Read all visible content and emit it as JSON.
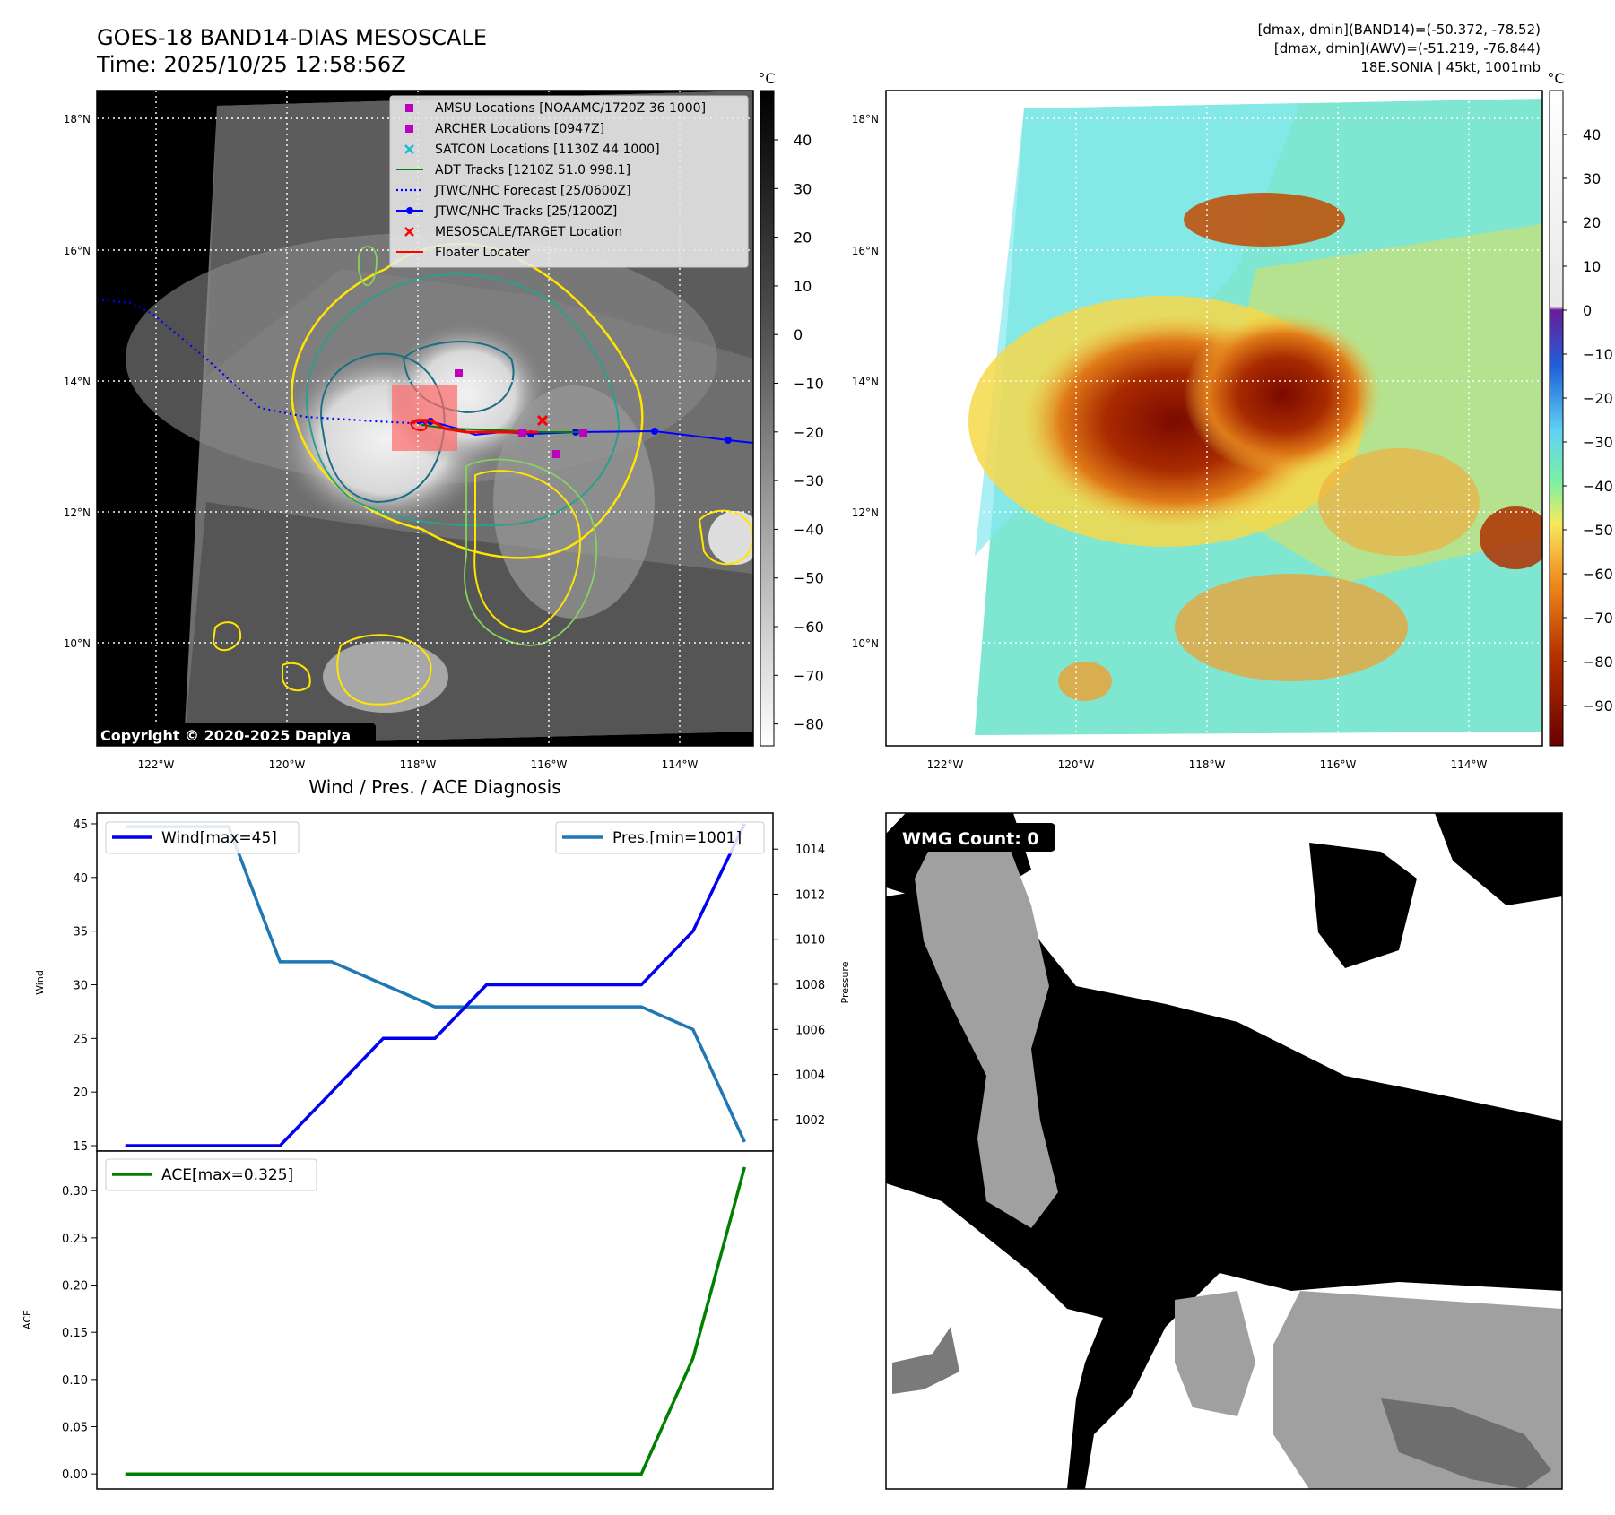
{
  "header": {
    "title_line1": "GOES-18 BAND14-DIAS MESOSCALE",
    "title_line2": "Time: 2025/10/25 12:58:56Z",
    "stats_line1": "[dmax, dmin](BAND14)=(-50.372, -78.52)",
    "stats_line2": "[dmax, dmin](AWV)=(-51.219, -76.844)",
    "stats_line3": "18E.SONIA | 45kt, 1001mb"
  },
  "map_axes": {
    "lon_labels": [
      "122°W",
      "120°W",
      "118°W",
      "116°W",
      "114°W"
    ],
    "lat_labels": [
      "18°N",
      "16°N",
      "14°N",
      "12°N",
      "10°N"
    ],
    "copyright": "Copyright © 2020-2025 Dapiya"
  },
  "ir_colorbar": {
    "unit": "°C",
    "ticks": [
      "40",
      "30",
      "20",
      "10",
      "0",
      "−10",
      "−20",
      "−30",
      "−40",
      "−50",
      "−60",
      "−70",
      "−80"
    ]
  },
  "wv_colorbar": {
    "unit": "°C",
    "ticks": [
      "40",
      "30",
      "20",
      "10",
      "0",
      "−10",
      "−20",
      "−30",
      "−40",
      "−50",
      "−60",
      "−70",
      "−80",
      "−90"
    ]
  },
  "map_legend": [
    {
      "label": "AMSU Locations [NOAAMC/1720Z 36 1000]",
      "color": "#c000c0",
      "marker": "square"
    },
    {
      "label": "ARCHER Locations [0947Z]",
      "color": "#c000c0",
      "marker": "square"
    },
    {
      "label": "SATCON Locations [1130Z 44 1000]",
      "color": "#17becf",
      "marker": "x"
    },
    {
      "label": "ADT Tracks [1210Z 51.0 998.1]",
      "color": "#008000",
      "marker": "line"
    },
    {
      "label": "JTWC/NHC Forecast [25/0600Z]",
      "color": "#0000ff",
      "marker": "dotted"
    },
    {
      "label": "JTWC/NHC Tracks [25/1200Z]",
      "color": "#0000ff",
      "marker": "line-dot"
    },
    {
      "label": "MESOSCALE/TARGET Location",
      "color": "#ff0000",
      "marker": "x"
    },
    {
      "label": "Floater Locater",
      "color": "#ff0000",
      "marker": "line"
    }
  ],
  "wmg": {
    "label": "WMG Count: 0"
  },
  "chart_data": [
    {
      "type": "line",
      "title": "Wind / Pres. / ACE Diagnosis",
      "x": [
        0,
        1,
        2,
        3,
        4,
        5,
        6,
        7,
        8,
        9,
        10,
        11,
        12
      ],
      "series": [
        {
          "name": "Wind[max=45]",
          "axis": "left",
          "color": "#0000ee",
          "values": [
            15,
            15,
            15,
            15,
            20,
            25,
            25,
            30,
            30,
            30,
            30,
            35,
            45
          ]
        },
        {
          "name": "Pres.[min=1001]",
          "axis": "right",
          "color": "#1f77b4",
          "values": [
            1015,
            1015,
            1015,
            1009,
            1009,
            1008,
            1007,
            1007,
            1007,
            1007,
            1007,
            1006,
            1001
          ]
        }
      ],
      "ylabel": "Wind",
      "ylabel_right": "Pres­sure",
      "yticks": [
        "15",
        "20",
        "25",
        "30",
        "35",
        "40",
        "45"
      ],
      "yticks_right": [
        "1002",
        "1004",
        "1006",
        "1008",
        "1010",
        "1012",
        "1014"
      ],
      "ylim": [
        14.5,
        46
      ],
      "ylim_right": [
        1000.6,
        1015.6
      ]
    },
    {
      "type": "line",
      "x": [
        0,
        1,
        2,
        3,
        4,
        5,
        6,
        7,
        8,
        9,
        10,
        11,
        12
      ],
      "series": [
        {
          "name": "ACE[max=0.325]",
          "color": "#008000",
          "values": [
            0,
            0,
            0,
            0,
            0,
            0,
            0,
            0,
            0,
            0,
            0,
            0.1225,
            0.325
          ]
        }
      ],
      "ylabel": "ACE",
      "yticks": [
        "0.00",
        "0.05",
        "0.10",
        "0.15",
        "0.20",
        "0.25",
        "0.30"
      ],
      "ylim": [
        -0.016,
        0.342
      ]
    }
  ]
}
